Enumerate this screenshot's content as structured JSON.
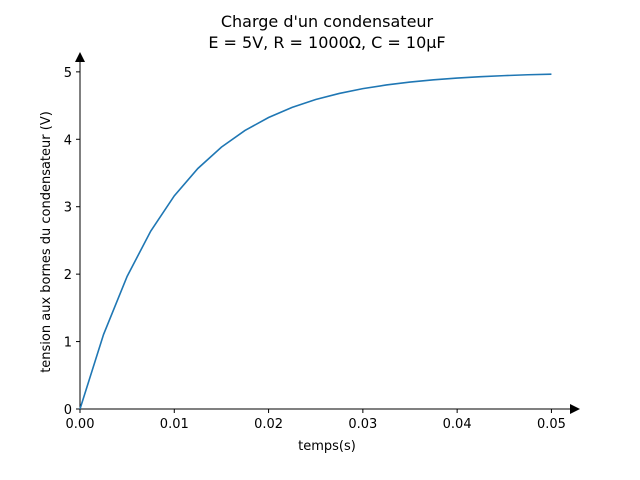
{
  "chart_data": {
    "type": "line",
    "title": "Charge d'un condensateur",
    "subtitle": "E = 5V, R = 1000Ω, C = 10μF",
    "xlabel": "temps(s)",
    "ylabel": "tension aux bornes du condensateur (V)",
    "x": [
      0,
      0.0025,
      0.005,
      0.0075,
      0.01,
      0.0125,
      0.015,
      0.0175,
      0.02,
      0.0225,
      0.025,
      0.0275,
      0.03,
      0.0325,
      0.035,
      0.0375,
      0.04,
      0.0425,
      0.045,
      0.0475,
      0.05
    ],
    "series": [
      {
        "name": "tension",
        "color": "#1f77b4",
        "values": [
          0,
          1.106,
          1.967,
          2.638,
          3.161,
          3.567,
          3.884,
          4.131,
          4.323,
          4.473,
          4.59,
          4.68,
          4.751,
          4.806,
          4.849,
          4.882,
          4.908,
          4.929,
          4.944,
          4.957,
          4.966
        ]
      }
    ],
    "xlim": [
      0,
      0.0525
    ],
    "ylim": [
      0,
      5.25
    ],
    "xticks": [
      {
        "value": 0,
        "label": "0.00"
      },
      0.01,
      0.02,
      0.03,
      0.04,
      0.05
    ],
    "yticks": [
      0,
      1,
      2,
      3,
      4,
      5
    ],
    "grid": false
  }
}
